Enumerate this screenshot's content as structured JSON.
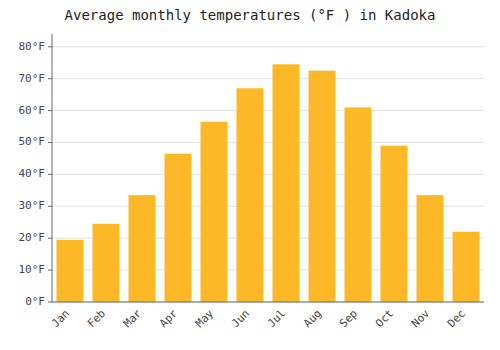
{
  "chart_data": {
    "type": "bar",
    "title": "Average monthly temperatures (°F ) in Kadoka",
    "categories": [
      "Jan",
      "Feb",
      "Mar",
      "Apr",
      "May",
      "Jun",
      "Jul",
      "Aug",
      "Sep",
      "Oct",
      "Nov",
      "Dec"
    ],
    "values": [
      19.5,
      24.5,
      33.5,
      46.5,
      56.5,
      67.0,
      74.5,
      72.5,
      61.0,
      49.0,
      33.5,
      22.0
    ],
    "color": "#FDB827",
    "ylim": [
      0,
      84
    ],
    "yticks": [
      {
        "value": 0,
        "label": "0°F"
      },
      {
        "value": 10,
        "label": "10°F"
      },
      {
        "value": 20,
        "label": "20°F"
      },
      {
        "value": 30,
        "label": "30°F"
      },
      {
        "value": 40,
        "label": "40°F"
      },
      {
        "value": 50,
        "label": "50°F"
      },
      {
        "value": 60,
        "label": "60°F"
      },
      {
        "value": 70,
        "label": "70°F"
      },
      {
        "value": 80,
        "label": "80°F"
      }
    ],
    "grid": true
  }
}
